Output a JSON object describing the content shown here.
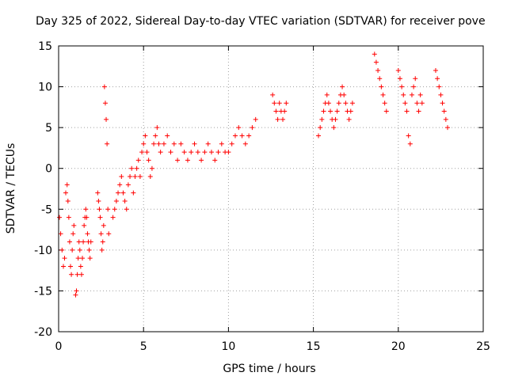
{
  "chart_data": {
    "type": "scatter",
    "title": "Day 325 of 2022, Sidereal Day-to-day VTEC variation (SDTVAR) for receiver pove",
    "xlabel": "GPS time / hours",
    "ylabel": "SDTVAR / TECUs",
    "xlim": [
      0,
      25
    ],
    "ylim": [
      -20,
      15
    ],
    "xticks": [
      0,
      5,
      10,
      15,
      20,
      25
    ],
    "yticks": [
      -20,
      -15,
      -10,
      -5,
      0,
      5,
      10,
      15
    ],
    "grid": true,
    "marker": "+",
    "color": "#ff0000",
    "series": [
      {
        "name": "SDTVAR",
        "x": [
          0.05,
          0.12,
          0.2,
          0.28,
          0.35,
          0.42,
          0.5,
          0.55,
          0.6,
          0.65,
          0.7,
          0.75,
          0.8,
          0.85,
          0.9,
          1.0,
          1.05,
          1.1,
          1.15,
          1.2,
          1.25,
          1.3,
          1.35,
          1.4,
          1.45,
          1.5,
          1.55,
          1.6,
          1.65,
          1.7,
          1.75,
          1.8,
          1.85,
          1.9,
          2.3,
          2.35,
          2.4,
          2.45,
          2.5,
          2.55,
          2.6,
          2.65,
          2.7,
          2.75,
          2.8,
          2.85,
          2.9,
          2.95,
          3.2,
          3.3,
          3.4,
          3.5,
          3.6,
          3.7,
          3.8,
          3.9,
          4.0,
          4.1,
          4.2,
          4.3,
          4.4,
          4.5,
          4.6,
          4.7,
          4.8,
          4.9,
          5.0,
          5.1,
          5.2,
          5.3,
          5.4,
          5.5,
          5.6,
          5.7,
          5.8,
          5.9,
          6.0,
          6.2,
          6.4,
          6.6,
          6.8,
          7.0,
          7.2,
          7.4,
          7.6,
          7.8,
          8.0,
          8.2,
          8.4,
          8.6,
          8.8,
          9.0,
          9.2,
          9.4,
          9.6,
          9.8,
          10.0,
          10.2,
          10.4,
          10.6,
          10.8,
          11.0,
          11.2,
          11.4,
          11.6,
          12.6,
          12.7,
          12.8,
          12.9,
          13.0,
          13.1,
          13.2,
          13.3,
          13.4,
          15.3,
          15.4,
          15.5,
          15.6,
          15.7,
          15.8,
          15.9,
          16.0,
          16.1,
          16.2,
          16.3,
          16.4,
          16.5,
          16.6,
          16.7,
          16.8,
          16.9,
          17.0,
          17.1,
          17.2,
          17.3,
          18.6,
          18.7,
          18.8,
          18.9,
          19.0,
          19.1,
          19.2,
          19.3,
          20.0,
          20.1,
          20.2,
          20.3,
          20.4,
          20.5,
          20.6,
          20.7,
          20.8,
          20.9,
          21.0,
          21.1,
          21.2,
          21.3,
          21.4,
          22.2,
          22.3,
          22.4,
          22.5,
          22.6,
          22.7,
          22.8,
          22.9
        ],
        "y": [
          -6,
          -8,
          -10,
          -12,
          -11,
          -3,
          -2,
          -4,
          -6,
          -9,
          -12,
          -13,
          -10,
          -8,
          -7,
          -15.5,
          -15,
          -13,
          -11,
          -9,
          -10,
          -12,
          -13,
          -11,
          -9,
          -7,
          -6,
          -5,
          -6,
          -8,
          -9,
          -10,
          -11,
          -9,
          -3,
          -4,
          -5,
          -6,
          -8,
          -10,
          -9,
          -7,
          10,
          8,
          6,
          3,
          -5,
          -8,
          -6,
          -5,
          -4,
          -3,
          -2,
          -1,
          -3,
          -4,
          -5,
          -2,
          -1,
          0,
          -3,
          -1,
          0,
          1,
          -1,
          2,
          3,
          4,
          2,
          1,
          -1,
          0,
          3,
          4,
          5,
          3,
          2,
          3,
          4,
          2,
          3,
          1,
          3,
          2,
          1,
          2,
          3,
          2,
          1,
          2,
          3,
          2,
          1,
          2,
          3,
          2,
          2,
          3,
          4,
          5,
          4,
          3,
          4,
          5,
          6,
          9,
          8,
          7,
          6,
          8,
          7,
          6,
          7,
          8,
          4,
          5,
          6,
          7,
          8,
          9,
          8,
          7,
          6,
          5,
          6,
          7,
          8,
          9,
          10,
          9,
          8,
          7,
          6,
          7,
          8,
          14,
          13,
          12,
          11,
          10,
          9,
          8,
          7,
          12,
          11,
          10,
          9,
          8,
          7,
          4,
          3,
          9,
          10,
          11,
          8,
          7,
          9,
          8,
          12,
          11,
          10,
          9,
          8,
          7,
          6,
          5
        ]
      }
    ]
  }
}
